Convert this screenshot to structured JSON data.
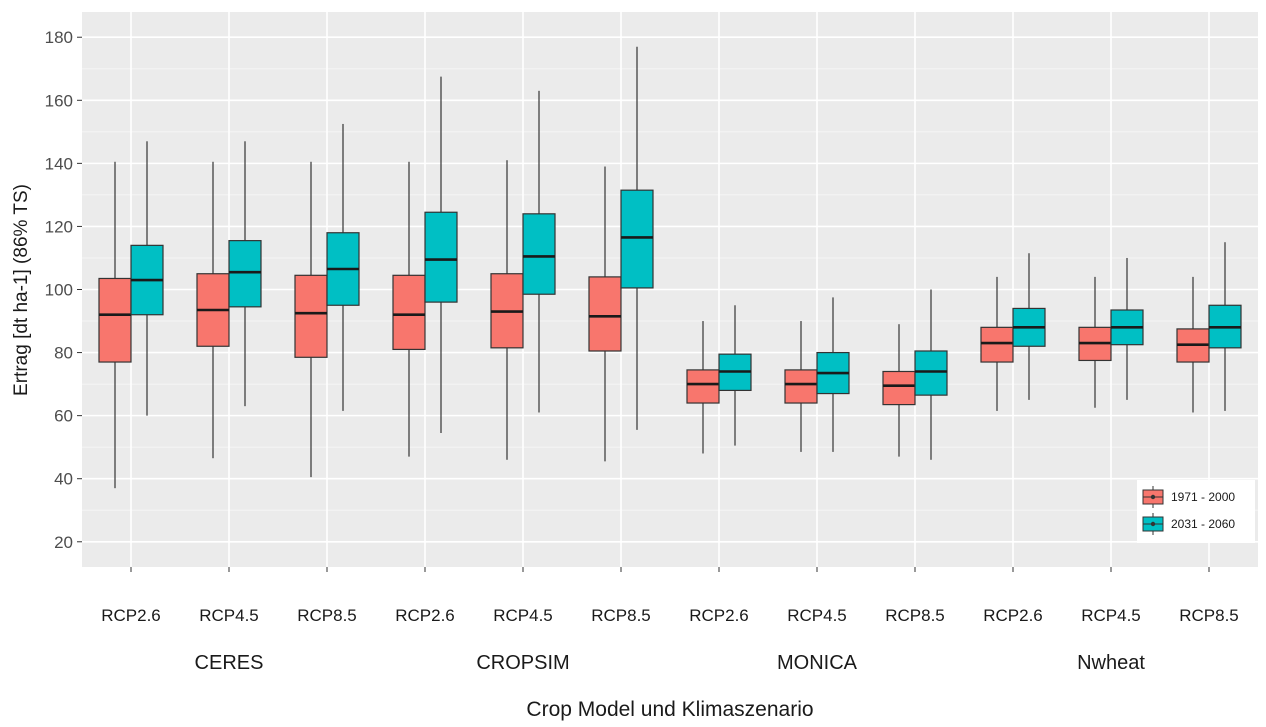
{
  "chart_data": {
    "type": "boxplot",
    "ylabel": "Ertrag [dt ha-1] (86% TS)",
    "xlabel": "Crop Model und Klimaszenario",
    "ylim": [
      12,
      188
    ],
    "yticks": [
      20,
      40,
      60,
      80,
      100,
      120,
      140,
      160,
      180
    ],
    "grid": true,
    "legend_position": "bottom-right",
    "groups": [
      "CERES",
      "CROPSIM",
      "MONICA",
      "Nwheat"
    ],
    "scenarios": [
      "RCP2.6",
      "RCP4.5",
      "RCP8.5"
    ],
    "series": [
      {
        "name": "1971 - 2000",
        "color": "#F8766D",
        "boxes": [
          {
            "group": "CERES",
            "scenario": "RCP2.6",
            "min": 37,
            "q1": 77,
            "median": 92,
            "q3": 103.5,
            "max": 140.5
          },
          {
            "group": "CERES",
            "scenario": "RCP4.5",
            "min": 46.5,
            "q1": 82,
            "median": 93.5,
            "q3": 105,
            "max": 140.5
          },
          {
            "group": "CERES",
            "scenario": "RCP8.5",
            "min": 40.5,
            "q1": 78.5,
            "median": 92.5,
            "q3": 104.5,
            "max": 140.5
          },
          {
            "group": "CROPSIM",
            "scenario": "RCP2.6",
            "min": 47,
            "q1": 81,
            "median": 92,
            "q3": 104.5,
            "max": 140.5
          },
          {
            "group": "CROPSIM",
            "scenario": "RCP4.5",
            "min": 46,
            "q1": 81.5,
            "median": 93,
            "q3": 105,
            "max": 141
          },
          {
            "group": "CROPSIM",
            "scenario": "RCP8.5",
            "min": 45.5,
            "q1": 80.5,
            "median": 91.5,
            "q3": 104,
            "max": 139
          },
          {
            "group": "MONICA",
            "scenario": "RCP2.6",
            "min": 48,
            "q1": 64,
            "median": 70,
            "q3": 74.5,
            "max": 90
          },
          {
            "group": "MONICA",
            "scenario": "RCP4.5",
            "min": 48.5,
            "q1": 64,
            "median": 70,
            "q3": 74.5,
            "max": 90
          },
          {
            "group": "MONICA",
            "scenario": "RCP8.5",
            "min": 47,
            "q1": 63.5,
            "median": 69.5,
            "q3": 74,
            "max": 89
          },
          {
            "group": "Nwheat",
            "scenario": "RCP2.6",
            "min": 61.5,
            "q1": 77,
            "median": 83,
            "q3": 88,
            "max": 104
          },
          {
            "group": "Nwheat",
            "scenario": "RCP4.5",
            "min": 62.5,
            "q1": 77.5,
            "median": 83,
            "q3": 88,
            "max": 104
          },
          {
            "group": "Nwheat",
            "scenario": "RCP8.5",
            "min": 61,
            "q1": 77,
            "median": 82.5,
            "q3": 87.5,
            "max": 104
          }
        ]
      },
      {
        "name": "2031 - 2060",
        "color": "#00BFC4",
        "boxes": [
          {
            "group": "CERES",
            "scenario": "RCP2.6",
            "min": 60,
            "q1": 92,
            "median": 103,
            "q3": 114,
            "max": 147
          },
          {
            "group": "CERES",
            "scenario": "RCP4.5",
            "min": 63,
            "q1": 94.5,
            "median": 105.5,
            "q3": 115.5,
            "max": 147
          },
          {
            "group": "CERES",
            "scenario": "RCP8.5",
            "min": 61.5,
            "q1": 95,
            "median": 106.5,
            "q3": 118,
            "max": 152.5
          },
          {
            "group": "CROPSIM",
            "scenario": "RCP2.6",
            "min": 54.5,
            "q1": 96,
            "median": 109.5,
            "q3": 124.5,
            "max": 167.5
          },
          {
            "group": "CROPSIM",
            "scenario": "RCP4.5",
            "min": 61,
            "q1": 98.5,
            "median": 110.5,
            "q3": 124,
            "max": 163
          },
          {
            "group": "CROPSIM",
            "scenario": "RCP8.5",
            "min": 55.5,
            "q1": 100.5,
            "median": 116.5,
            "q3": 131.5,
            "max": 177
          },
          {
            "group": "MONICA",
            "scenario": "RCP2.6",
            "min": 50.5,
            "q1": 68,
            "median": 74,
            "q3": 79.5,
            "max": 95
          },
          {
            "group": "MONICA",
            "scenario": "RCP4.5",
            "min": 48.5,
            "q1": 67,
            "median": 73.5,
            "q3": 80,
            "max": 97.5
          },
          {
            "group": "MONICA",
            "scenario": "RCP8.5",
            "min": 46,
            "q1": 66.5,
            "median": 74,
            "q3": 80.5,
            "max": 100
          },
          {
            "group": "Nwheat",
            "scenario": "RCP2.6",
            "min": 65,
            "q1": 82,
            "median": 88,
            "q3": 94,
            "max": 111.5
          },
          {
            "group": "Nwheat",
            "scenario": "RCP4.5",
            "min": 65,
            "q1": 82.5,
            "median": 88,
            "q3": 93.5,
            "max": 110
          },
          {
            "group": "Nwheat",
            "scenario": "RCP8.5",
            "min": 61.5,
            "q1": 81.5,
            "median": 88,
            "q3": 95,
            "max": 115
          }
        ]
      }
    ]
  }
}
